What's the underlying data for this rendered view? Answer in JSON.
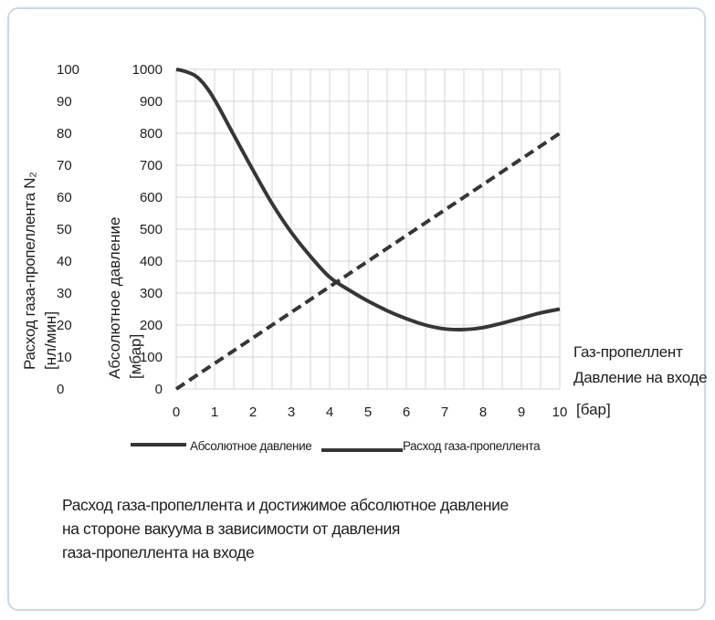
{
  "chart_data": {
    "type": "line",
    "x": [
      0,
      0.2,
      0.5,
      0.75,
      1,
      1.5,
      2,
      2.5,
      3,
      3.5,
      4,
      4.5,
      5,
      5.5,
      6,
      6.5,
      7,
      7.5,
      8,
      8.5,
      9,
      9.5,
      10
    ],
    "x_ticks": [
      "0",
      "1",
      "2",
      "3",
      "4",
      "5",
      "6",
      "7",
      "8",
      "9",
      "10"
    ],
    "xlim": [
      0,
      10
    ],
    "xlabel": [
      "Газ-пропеллент",
      "Давление на входе"
    ],
    "xunit": "[бар]",
    "left_axis": {
      "label": "Расход газа-пропеллента N₂",
      "unit": "[нл/мин]",
      "ticks": [
        "100",
        "90",
        "80",
        "70",
        "60",
        "50",
        "40",
        "30",
        "20",
        "10",
        "0"
      ],
      "ylim": [
        0,
        100
      ]
    },
    "right_axis": {
      "label": "Абсолютное давление",
      "unit": "[мбар]",
      "ticks": [
        "1000",
        "900",
        "800",
        "700",
        "600",
        "500",
        "400",
        "300",
        "200",
        "100",
        "0"
      ],
      "ylim": [
        0,
        1000
      ]
    },
    "series": [
      {
        "name": "Абсолютное давление",
        "axis": "right",
        "style": "solid",
        "values": [
          1000,
          995,
          980,
          950,
          905,
          795,
          685,
          580,
          490,
          415,
          350,
          310,
          275,
          245,
          220,
          200,
          188,
          186,
          192,
          206,
          222,
          238,
          250
        ]
      },
      {
        "name": "Расход газа-пропеллента",
        "axis": "left",
        "style": "dashed",
        "values": [
          0,
          1.6,
          4,
          6,
          8,
          12,
          16,
          20,
          24,
          28,
          32,
          36,
          40,
          44,
          48,
          52,
          56,
          60,
          64,
          68,
          72,
          76,
          80
        ]
      }
    ],
    "grid": true,
    "legend_position": "bottom"
  },
  "caption": [
    "Расход газа-пропеллента и достижимое абсолютное давление",
    "на стороне вакуума в зависимости от давления",
    "газа-пропеллента на входе"
  ],
  "colors": {
    "line": "#363636",
    "grid": "#d6d6d6",
    "frame": "#c9d9ea",
    "text": "#1e1e1e"
  }
}
